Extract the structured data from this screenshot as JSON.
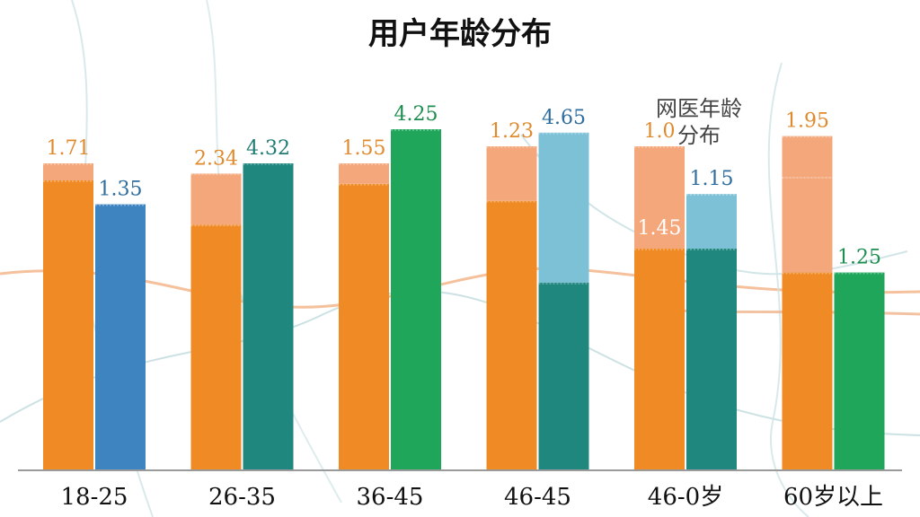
{
  "title": "用户年龄分布",
  "overlay_note": "网医年龄 分布",
  "colors": {
    "orange": "#F08A24",
    "orange_light": "#F3A77A",
    "blue": "#3E84C0",
    "blue_light": "#7CC1D6",
    "teal": "#20877F",
    "green": "#1FA65B",
    "label_orange": "#E08A2E",
    "label_blue": "#2F6E9E",
    "label_teal": "#1F7A73",
    "label_green": "#1E8E50",
    "axis": "#9a9a9a"
  },
  "chart_data": {
    "type": "bar",
    "title": "用户年龄分布",
    "categories": [
      "18-25",
      "26-35",
      "36-45",
      "46-45",
      "46-0岁",
      "60岁以上"
    ],
    "ylim": [
      0,
      5
    ],
    "grid": false,
    "legend": "none",
    "groups": [
      {
        "category": "18-25",
        "bars": [
          {
            "segments": [
              {
                "value": 4.25,
                "color": "orange"
              },
              {
                "value": 0.25,
                "color": "orange_light"
              }
            ],
            "label": "1.71",
            "label_color": "label_orange"
          },
          {
            "segments": [
              {
                "value": 3.9,
                "color": "blue"
              }
            ],
            "label": "1.35",
            "label_color": "label_blue"
          }
        ]
      },
      {
        "category": "26-35",
        "bars": [
          {
            "segments": [
              {
                "value": 3.6,
                "color": "orange"
              },
              {
                "value": 0.75,
                "color": "orange_light"
              }
            ],
            "label": "2.34",
            "label_color": "label_orange"
          },
          {
            "segments": [
              {
                "value": 4.5,
                "color": "teal"
              }
            ],
            "label": "4.32",
            "label_color": "label_teal"
          }
        ]
      },
      {
        "category": "36-45",
        "bars": [
          {
            "segments": [
              {
                "value": 4.2,
                "color": "orange"
              },
              {
                "value": 0.3,
                "color": "orange_light"
              }
            ],
            "label": "1.55",
            "label_color": "label_orange"
          },
          {
            "segments": [
              {
                "value": 5.0,
                "color": "green"
              }
            ],
            "label": "4.25",
            "label_color": "label_green"
          }
        ]
      },
      {
        "category": "46-45",
        "bars": [
          {
            "segments": [
              {
                "value": 3.95,
                "color": "orange"
              },
              {
                "value": 0.8,
                "color": "orange_light"
              }
            ],
            "label": "1.23",
            "label_color": "label_orange"
          },
          {
            "segments": [
              {
                "value": 2.75,
                "color": "teal"
              },
              {
                "value": 2.2,
                "color": "blue_light"
              }
            ],
            "label": "4.65",
            "label_color": "label_blue"
          }
        ]
      },
      {
        "category": "46-0岁",
        "bars": [
          {
            "segments": [
              {
                "value": 3.25,
                "color": "orange"
              },
              {
                "value": 1.5,
                "color": "orange_light"
              }
            ],
            "label": "1.0",
            "label_color": "label_orange",
            "inner_label": "1.45"
          },
          {
            "segments": [
              {
                "value": 3.25,
                "color": "teal"
              },
              {
                "value": 0.8,
                "color": "blue_light"
              }
            ],
            "label": "1.15",
            "label_color": "label_blue"
          }
        ]
      },
      {
        "category": "60岁以上",
        "bars": [
          {
            "segments": [
              {
                "value": 2.9,
                "color": "orange"
              },
              {
                "value": 1.4,
                "color": "orange_light"
              },
              {
                "value": 0.6,
                "color": "orange_light"
              }
            ],
            "label": "1.95",
            "label_color": "label_orange"
          },
          {
            "segments": [
              {
                "value": 2.9,
                "color": "green"
              }
            ],
            "label": "1.25",
            "label_color": "label_green"
          }
        ]
      }
    ]
  }
}
